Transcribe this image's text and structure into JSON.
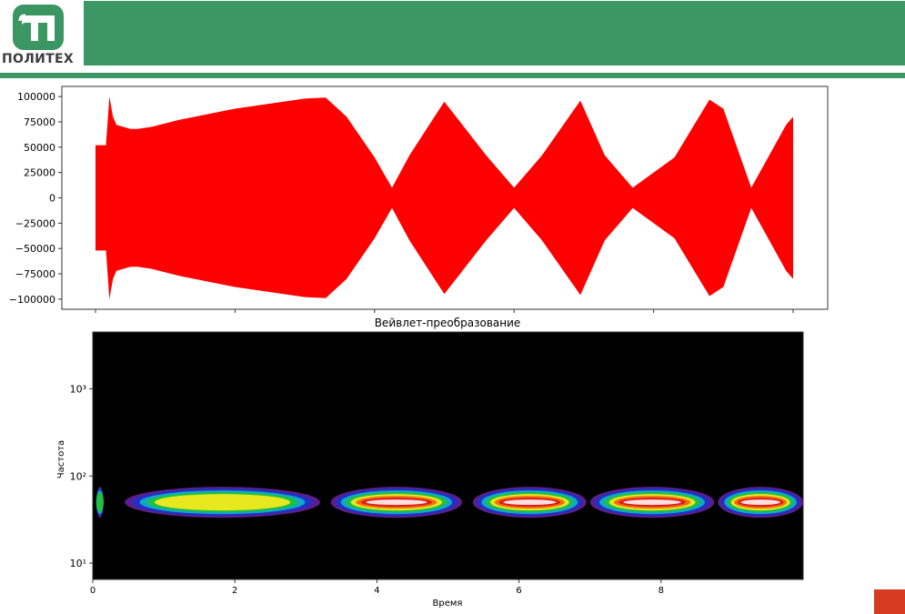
{
  "header": {
    "logo_text": "ПОЛИТЕХ",
    "brand_color": "#3c9765",
    "accent_color": "#d63b22"
  },
  "chart_data": [
    {
      "type": "line",
      "title": "",
      "xlabel": "",
      "ylabel": "",
      "color": "#ff0000",
      "xlim": [
        0,
        10
      ],
      "ylim": [
        -110000,
        110000
      ],
      "ytick_labels": [
        "100000",
        "75000",
        "50000",
        "25000",
        "0",
        "−25000",
        "−50000",
        "−75000",
        "−100000"
      ],
      "yticks": [
        100000,
        75000,
        50000,
        25000,
        0,
        -25000,
        -50000,
        -75000,
        -100000
      ],
      "x": [
        0.0,
        0.05,
        0.15,
        0.2,
        0.25,
        0.3,
        0.4,
        0.5,
        0.6,
        0.8,
        1.2,
        2.0,
        3.0,
        3.3,
        3.6,
        4.0,
        4.25,
        4.5,
        5.0,
        5.6,
        6.0,
        6.4,
        6.95,
        7.3,
        7.7,
        8.3,
        8.8,
        9.0,
        9.4,
        9.9,
        10.0
      ],
      "envelope": [
        52000,
        52000,
        52000,
        100000,
        80000,
        72000,
        70000,
        68000,
        68000,
        70000,
        77000,
        88000,
        98000,
        99000,
        80000,
        40000,
        10000,
        42000,
        95000,
        42000,
        10000,
        42000,
        96000,
        42000,
        10000,
        40000,
        97000,
        88000,
        10000,
        72000,
        80000
      ]
    },
    {
      "type": "heatmap",
      "title": "Вейвлет-преобразование",
      "xlabel": "Время",
      "ylabel": "Частота",
      "xlim": [
        0,
        10
      ],
      "ylim": [
        6.5,
        4500
      ],
      "yscale": "log",
      "xticks": [
        0,
        2,
        4,
        6,
        8
      ],
      "ytick_labels": [
        "10³",
        "10²",
        "10¹"
      ],
      "yticks": [
        1000,
        100,
        10
      ],
      "colormap": "nipy_spectral",
      "blobs": [
        {
          "t0": 0.05,
          "t1": 0.15,
          "freq": 50,
          "strength": 0.55
        },
        {
          "t0": 0.45,
          "t1": 3.2,
          "freq": 50,
          "strength": 0.6
        },
        {
          "t0": 3.35,
          "t1": 5.2,
          "freq": 50,
          "strength": 1.0
        },
        {
          "t0": 5.35,
          "t1": 6.95,
          "freq": 50,
          "strength": 1.0
        },
        {
          "t0": 7.0,
          "t1": 8.75,
          "freq": 50,
          "strength": 1.0
        },
        {
          "t0": 8.8,
          "t1": 10.0,
          "freq": 50,
          "strength": 0.95
        }
      ]
    }
  ]
}
